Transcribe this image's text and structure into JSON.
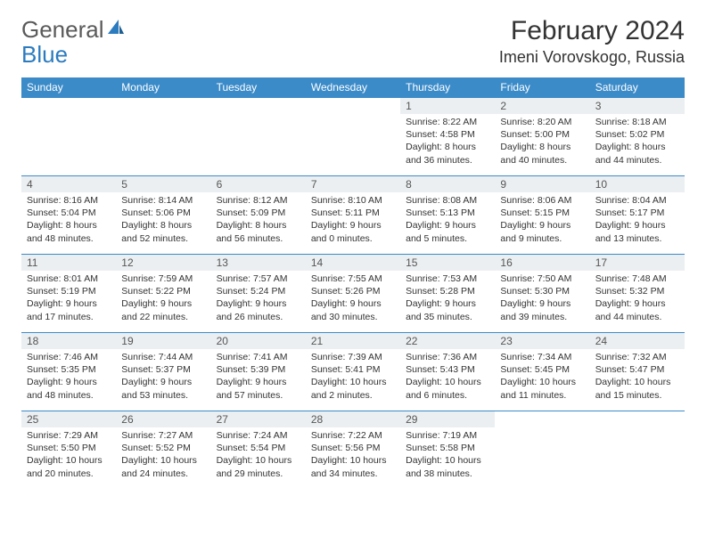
{
  "brand": {
    "part1": "General",
    "part2": "Blue"
  },
  "title": "February 2024",
  "location": "Imeni Vorovskogo, Russia",
  "colors": {
    "header_bg": "#3b8bc9",
    "header_text": "#ffffff",
    "daynum_bg": "#eceff1",
    "border": "#3b8bc9",
    "text": "#333333",
    "logo_gray": "#5a5a5a",
    "logo_blue": "#2b7bbf",
    "page_bg": "#ffffff"
  },
  "weekdays": [
    "Sunday",
    "Monday",
    "Tuesday",
    "Wednesday",
    "Thursday",
    "Friday",
    "Saturday"
  ],
  "weeks": [
    [
      null,
      null,
      null,
      null,
      {
        "n": "1",
        "sr": "Sunrise: 8:22 AM",
        "ss": "Sunset: 4:58 PM",
        "d1": "Daylight: 8 hours",
        "d2": "and 36 minutes."
      },
      {
        "n": "2",
        "sr": "Sunrise: 8:20 AM",
        "ss": "Sunset: 5:00 PM",
        "d1": "Daylight: 8 hours",
        "d2": "and 40 minutes."
      },
      {
        "n": "3",
        "sr": "Sunrise: 8:18 AM",
        "ss": "Sunset: 5:02 PM",
        "d1": "Daylight: 8 hours",
        "d2": "and 44 minutes."
      }
    ],
    [
      {
        "n": "4",
        "sr": "Sunrise: 8:16 AM",
        "ss": "Sunset: 5:04 PM",
        "d1": "Daylight: 8 hours",
        "d2": "and 48 minutes."
      },
      {
        "n": "5",
        "sr": "Sunrise: 8:14 AM",
        "ss": "Sunset: 5:06 PM",
        "d1": "Daylight: 8 hours",
        "d2": "and 52 minutes."
      },
      {
        "n": "6",
        "sr": "Sunrise: 8:12 AM",
        "ss": "Sunset: 5:09 PM",
        "d1": "Daylight: 8 hours",
        "d2": "and 56 minutes."
      },
      {
        "n": "7",
        "sr": "Sunrise: 8:10 AM",
        "ss": "Sunset: 5:11 PM",
        "d1": "Daylight: 9 hours",
        "d2": "and 0 minutes."
      },
      {
        "n": "8",
        "sr": "Sunrise: 8:08 AM",
        "ss": "Sunset: 5:13 PM",
        "d1": "Daylight: 9 hours",
        "d2": "and 5 minutes."
      },
      {
        "n": "9",
        "sr": "Sunrise: 8:06 AM",
        "ss": "Sunset: 5:15 PM",
        "d1": "Daylight: 9 hours",
        "d2": "and 9 minutes."
      },
      {
        "n": "10",
        "sr": "Sunrise: 8:04 AM",
        "ss": "Sunset: 5:17 PM",
        "d1": "Daylight: 9 hours",
        "d2": "and 13 minutes."
      }
    ],
    [
      {
        "n": "11",
        "sr": "Sunrise: 8:01 AM",
        "ss": "Sunset: 5:19 PM",
        "d1": "Daylight: 9 hours",
        "d2": "and 17 minutes."
      },
      {
        "n": "12",
        "sr": "Sunrise: 7:59 AM",
        "ss": "Sunset: 5:22 PM",
        "d1": "Daylight: 9 hours",
        "d2": "and 22 minutes."
      },
      {
        "n": "13",
        "sr": "Sunrise: 7:57 AM",
        "ss": "Sunset: 5:24 PM",
        "d1": "Daylight: 9 hours",
        "d2": "and 26 minutes."
      },
      {
        "n": "14",
        "sr": "Sunrise: 7:55 AM",
        "ss": "Sunset: 5:26 PM",
        "d1": "Daylight: 9 hours",
        "d2": "and 30 minutes."
      },
      {
        "n": "15",
        "sr": "Sunrise: 7:53 AM",
        "ss": "Sunset: 5:28 PM",
        "d1": "Daylight: 9 hours",
        "d2": "and 35 minutes."
      },
      {
        "n": "16",
        "sr": "Sunrise: 7:50 AM",
        "ss": "Sunset: 5:30 PM",
        "d1": "Daylight: 9 hours",
        "d2": "and 39 minutes."
      },
      {
        "n": "17",
        "sr": "Sunrise: 7:48 AM",
        "ss": "Sunset: 5:32 PM",
        "d1": "Daylight: 9 hours",
        "d2": "and 44 minutes."
      }
    ],
    [
      {
        "n": "18",
        "sr": "Sunrise: 7:46 AM",
        "ss": "Sunset: 5:35 PM",
        "d1": "Daylight: 9 hours",
        "d2": "and 48 minutes."
      },
      {
        "n": "19",
        "sr": "Sunrise: 7:44 AM",
        "ss": "Sunset: 5:37 PM",
        "d1": "Daylight: 9 hours",
        "d2": "and 53 minutes."
      },
      {
        "n": "20",
        "sr": "Sunrise: 7:41 AM",
        "ss": "Sunset: 5:39 PM",
        "d1": "Daylight: 9 hours",
        "d2": "and 57 minutes."
      },
      {
        "n": "21",
        "sr": "Sunrise: 7:39 AM",
        "ss": "Sunset: 5:41 PM",
        "d1": "Daylight: 10 hours",
        "d2": "and 2 minutes."
      },
      {
        "n": "22",
        "sr": "Sunrise: 7:36 AM",
        "ss": "Sunset: 5:43 PM",
        "d1": "Daylight: 10 hours",
        "d2": "and 6 minutes."
      },
      {
        "n": "23",
        "sr": "Sunrise: 7:34 AM",
        "ss": "Sunset: 5:45 PM",
        "d1": "Daylight: 10 hours",
        "d2": "and 11 minutes."
      },
      {
        "n": "24",
        "sr": "Sunrise: 7:32 AM",
        "ss": "Sunset: 5:47 PM",
        "d1": "Daylight: 10 hours",
        "d2": "and 15 minutes."
      }
    ],
    [
      {
        "n": "25",
        "sr": "Sunrise: 7:29 AM",
        "ss": "Sunset: 5:50 PM",
        "d1": "Daylight: 10 hours",
        "d2": "and 20 minutes."
      },
      {
        "n": "26",
        "sr": "Sunrise: 7:27 AM",
        "ss": "Sunset: 5:52 PM",
        "d1": "Daylight: 10 hours",
        "d2": "and 24 minutes."
      },
      {
        "n": "27",
        "sr": "Sunrise: 7:24 AM",
        "ss": "Sunset: 5:54 PM",
        "d1": "Daylight: 10 hours",
        "d2": "and 29 minutes."
      },
      {
        "n": "28",
        "sr": "Sunrise: 7:22 AM",
        "ss": "Sunset: 5:56 PM",
        "d1": "Daylight: 10 hours",
        "d2": "and 34 minutes."
      },
      {
        "n": "29",
        "sr": "Sunrise: 7:19 AM",
        "ss": "Sunset: 5:58 PM",
        "d1": "Daylight: 10 hours",
        "d2": "and 38 minutes."
      },
      null,
      null
    ]
  ]
}
